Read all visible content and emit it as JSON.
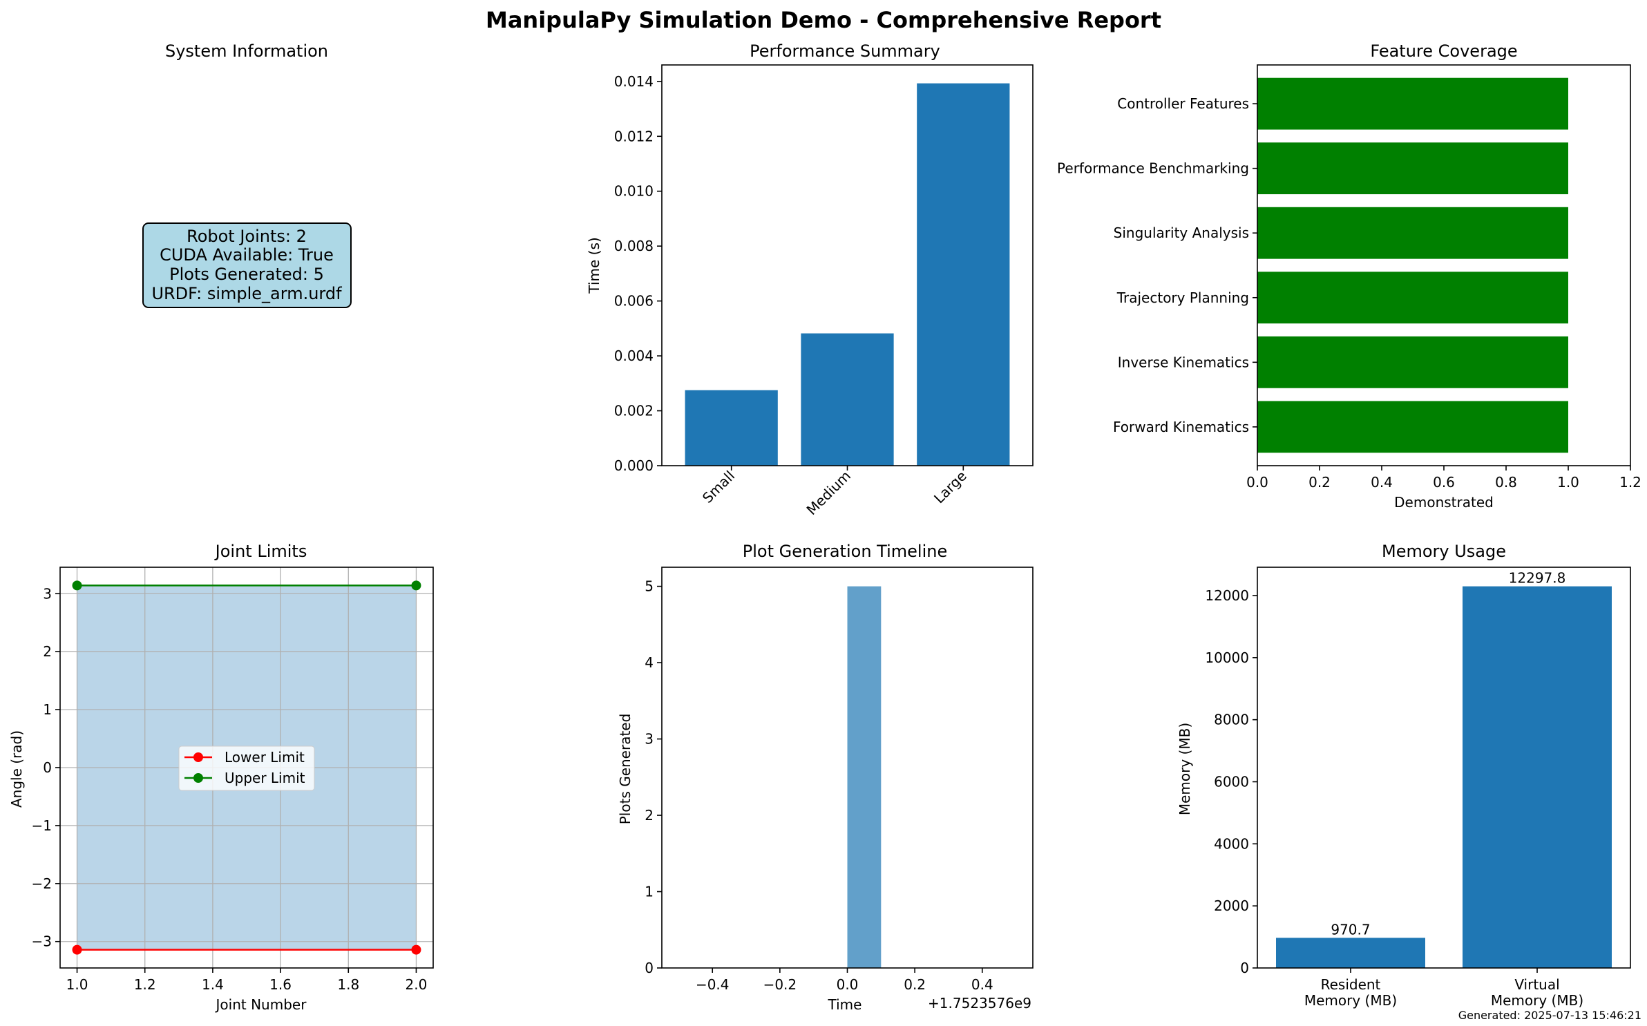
{
  "figure": {
    "title": "ManipulaPy Simulation Demo - Comprehensive Report",
    "footer": "Generated: 2025-07-13 15:46:21"
  },
  "colors": {
    "bar_blue": "#1f77b4",
    "feature_green": "#008000",
    "lower_red": "#ff0000",
    "upper_green": "#008000",
    "fill_blue": "#bad5e8",
    "info_box": "#add8e6",
    "grid": "#b0b0b0"
  },
  "chart_data": [
    {
      "id": "system-info",
      "type": "table",
      "title": "System Information",
      "lines": [
        "Robot Joints: 2",
        "CUDA Available: True",
        "Plots Generated: 5",
        "URDF: simple_arm.urdf"
      ]
    },
    {
      "id": "performance",
      "type": "bar",
      "title": "Performance Summary",
      "xlabel": "",
      "ylabel": "Time (s)",
      "categories": [
        "Small",
        "Medium",
        "Large"
      ],
      "values": [
        0.00275,
        0.00482,
        0.01393
      ],
      "ylim": [
        0,
        0.0146
      ],
      "yticks": [
        0.0,
        0.002,
        0.004,
        0.006,
        0.008,
        0.01,
        0.012,
        0.014
      ],
      "ytick_labels": [
        "0.000",
        "0.002",
        "0.004",
        "0.006",
        "0.008",
        "0.010",
        "0.012",
        "0.014"
      ],
      "grid": false
    },
    {
      "id": "features",
      "type": "bar",
      "orientation": "horizontal",
      "title": "Feature Coverage",
      "xlabel": "Demonstrated",
      "ylabel": "",
      "categories": [
        "Forward Kinematics",
        "Inverse Kinematics",
        "Trajectory Planning",
        "Singularity Analysis",
        "Performance Benchmarking",
        "Controller Features"
      ],
      "values": [
        1,
        1,
        1,
        1,
        1,
        1
      ],
      "xlim": [
        0,
        1.2
      ],
      "xticks": [
        0,
        0.2,
        0.4,
        0.6,
        0.8,
        1.0,
        1.2
      ],
      "xtick_labels": [
        "0.0",
        "0.2",
        "0.4",
        "0.6",
        "0.8",
        "1.0",
        "1.2"
      ],
      "grid": false
    },
    {
      "id": "joint-limits",
      "type": "line",
      "title": "Joint Limits",
      "xlabel": "Joint Number",
      "ylabel": "Angle (rad)",
      "x": [
        1,
        2
      ],
      "series": [
        {
          "name": "Lower Limit",
          "values": [
            -3.14159,
            -3.14159
          ]
        },
        {
          "name": "Upper Limit",
          "values": [
            3.14159,
            3.14159
          ]
        }
      ],
      "xlim": [
        0.95,
        2.05
      ],
      "ylim": [
        -3.456,
        3.456
      ],
      "xticks": [
        1.0,
        1.2,
        1.4,
        1.6,
        1.8,
        2.0
      ],
      "xtick_labels": [
        "1.0",
        "1.2",
        "1.4",
        "1.6",
        "1.8",
        "2.0"
      ],
      "yticks": [
        -3,
        -2,
        -1,
        0,
        1,
        2,
        3
      ],
      "ytick_labels": [
        "−3",
        "−2",
        "−1",
        "0",
        "1",
        "2",
        "3"
      ],
      "legend": "center",
      "grid": true
    },
    {
      "id": "timeline",
      "type": "bar",
      "title": "Plot Generation Timeline",
      "xlabel": "Time",
      "ylabel": "Plots Generated",
      "x_offset_label": "+1.7523576e9",
      "bins": [
        {
          "start": 0.0,
          "end": 0.1,
          "count": 5
        }
      ],
      "xlim": [
        -0.55,
        0.55
      ],
      "ylim": [
        0,
        5.25
      ],
      "xticks": [
        -0.4,
        -0.2,
        0.0,
        0.2,
        0.4
      ],
      "xtick_labels": [
        "−0.4",
        "−0.2",
        "0.0",
        "0.2",
        "0.4"
      ],
      "yticks": [
        0,
        1,
        2,
        3,
        4,
        5
      ],
      "ytick_labels": [
        "0",
        "1",
        "2",
        "3",
        "4",
        "5"
      ],
      "grid": false
    },
    {
      "id": "memory",
      "type": "bar",
      "title": "Memory Usage",
      "xlabel": "",
      "ylabel": "Memory (MB)",
      "categories": [
        [
          "Resident",
          "Memory (MB)"
        ],
        [
          "Virtual",
          "Memory (MB)"
        ]
      ],
      "values": [
        970.7,
        12297.8
      ],
      "value_labels": [
        "970.7",
        "12297.8"
      ],
      "ylim": [
        0,
        12912.7
      ],
      "yticks": [
        0,
        2000,
        4000,
        6000,
        8000,
        10000,
        12000
      ],
      "ytick_labels": [
        "0",
        "2000",
        "4000",
        "6000",
        "8000",
        "10000",
        "12000"
      ],
      "grid": false
    }
  ]
}
